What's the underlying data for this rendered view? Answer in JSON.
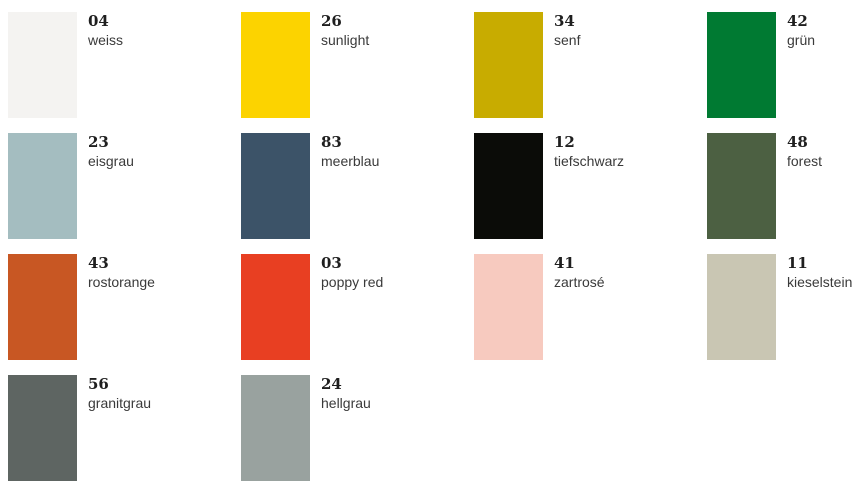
{
  "colors": [
    {
      "code": "04",
      "name": "weiss",
      "hex": "#F4F3F1"
    },
    {
      "code": "26",
      "name": "sunlight",
      "hex": "#FCD300"
    },
    {
      "code": "34",
      "name": "senf",
      "hex": "#C8AC00"
    },
    {
      "code": "42",
      "name": "grün",
      "hex": "#007A32"
    },
    {
      "code": "23",
      "name": "eisgrau",
      "hex": "#A4BDC0"
    },
    {
      "code": "83",
      "name": "meerblau",
      "hex": "#3C5368"
    },
    {
      "code": "12",
      "name": "tiefschwarz",
      "hex": "#0B0C08"
    },
    {
      "code": "48",
      "name": "forest",
      "hex": "#4C6042"
    },
    {
      "code": "43",
      "name": "rostorange",
      "hex": "#C85723"
    },
    {
      "code": "03",
      "name": "poppy red",
      "hex": "#E83F22"
    },
    {
      "code": "41",
      "name": "zartrosé",
      "hex": "#F7CABF"
    },
    {
      "code": "11",
      "name": "kieselstein",
      "hex": "#C9C6B3"
    },
    {
      "code": "56",
      "name": "granitgrau",
      "hex": "#5E6562"
    },
    {
      "code": "24",
      "name": "hellgrau",
      "hex": "#99A29F"
    }
  ]
}
